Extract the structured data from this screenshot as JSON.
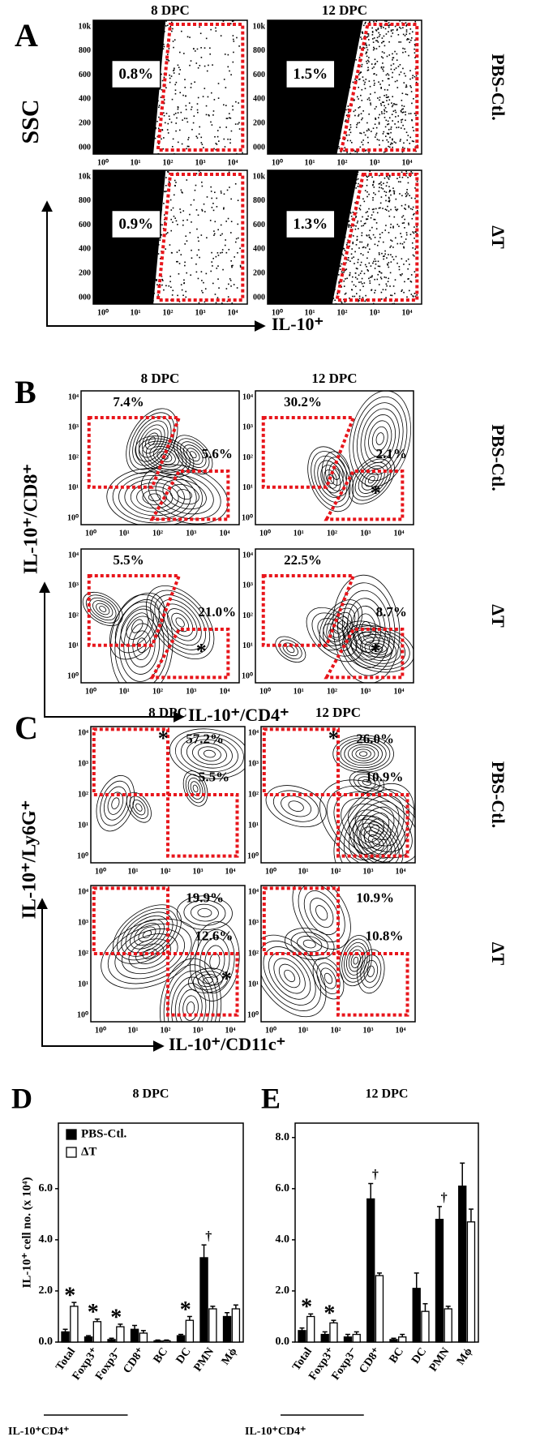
{
  "panels": [
    {
      "letter": "A",
      "columns": [
        "8 DPC",
        "12 DPC"
      ],
      "rows": [
        "PBS-Ctl.",
        "ΔT"
      ],
      "y_label": "SSC",
      "x_label": "IL-10⁺",
      "yticks": [
        "10k",
        "800",
        "600",
        "400",
        "200",
        "000"
      ],
      "xticks": [
        "10⁰",
        "10¹",
        "10²",
        "10³",
        "10⁴"
      ],
      "plots": [
        {
          "gates": [
            {
              "label": "0.8%"
            }
          ]
        },
        {
          "gates": [
            {
              "label": "1.5%"
            }
          ]
        },
        {
          "gates": [
            {
              "label": "0.9%"
            }
          ]
        },
        {
          "gates": [
            {
              "label": "1.3%"
            }
          ]
        }
      ]
    },
    {
      "letter": "B",
      "columns": [
        "8 DPC",
        "12 DPC"
      ],
      "rows": [
        "PBS-Ctl.",
        "ΔT"
      ],
      "y_label": "IL-10⁺/CD8⁺",
      "x_label": "IL-10⁺/CD4⁺",
      "yticks": [
        "10⁴",
        "10³",
        "10²",
        "10¹",
        "10⁰"
      ],
      "xticks": [
        "10⁰",
        "10¹",
        "10²",
        "10³",
        "10⁴"
      ],
      "plots": [
        {
          "gates": [
            {
              "label": "7.4%"
            },
            {
              "label": "5.6%"
            }
          ]
        },
        {
          "gates": [
            {
              "label": "30.2%"
            },
            {
              "label": "2.1%",
              "mark": "*"
            }
          ]
        },
        {
          "gates": [
            {
              "label": "5.5%"
            },
            {
              "label": "21.0%",
              "mark": "*"
            }
          ]
        },
        {
          "gates": [
            {
              "label": "22.5%"
            },
            {
              "label": "8.7%",
              "mark": "*"
            }
          ]
        }
      ]
    },
    {
      "letter": "C",
      "columns": [
        "8 DPC",
        "12 DPC"
      ],
      "rows": [
        "PBS-Ctl.",
        "ΔT"
      ],
      "y_label": "IL-10⁺/Ly6G⁺",
      "x_label": "IL-10⁺/CD11c⁺",
      "yticks": [
        "10⁴",
        "10³",
        "10²",
        "10¹",
        "10⁰"
      ],
      "xticks": [
        "10⁰",
        "10¹",
        "10²",
        "10³",
        "10⁴"
      ],
      "plots": [
        {
          "gates": [
            {
              "label": "57.2%",
              "mark": "*"
            },
            {
              "label": "5.5%"
            }
          ]
        },
        {
          "gates": [
            {
              "label": "26.0%",
              "mark": "*"
            },
            {
              "label": "10.9%"
            }
          ]
        },
        {
          "gates": [
            {
              "label": "19.9%"
            },
            {
              "label": "12.6%",
              "mark": "*"
            }
          ]
        },
        {
          "gates": [
            {
              "label": "10.9%"
            },
            {
              "label": "10.8%"
            }
          ]
        }
      ]
    }
  ],
  "chart_data": [
    {
      "type": "bar",
      "letter": "D",
      "title": "8 DPC",
      "y_label": "IL-10⁺ cell no. (x 10⁴)",
      "categories": [
        "Total",
        "Foxp3⁺",
        "Foxp3⁻",
        "CD8⁺",
        "BC",
        "DC",
        "PMN",
        "Mϕ"
      ],
      "series": [
        {
          "name": "PBS-Ctl.",
          "color": "#000000",
          "values": [
            0.4,
            0.2,
            0.1,
            0.5,
            0.05,
            0.25,
            3.3,
            1.0
          ],
          "errors": [
            0.1,
            0.05,
            0.05,
            0.15,
            0.03,
            0.05,
            0.5,
            0.15
          ]
        },
        {
          "name": "ΔT",
          "color": "#ffffff",
          "values": [
            1.4,
            0.8,
            0.6,
            0.35,
            0.05,
            0.85,
            1.3,
            1.3
          ],
          "errors": [
            0.15,
            0.1,
            0.1,
            0.1,
            0.03,
            0.15,
            0.1,
            0.15
          ]
        }
      ],
      "ylim": [
        0,
        8.5
      ],
      "yticks": [
        {
          "value": 0,
          "label": "0.0"
        },
        {
          "value": 2,
          "label": "2.0"
        },
        {
          "value": 4,
          "label": "4.0"
        },
        {
          "value": 6,
          "label": "6.0"
        }
      ],
      "legend": "upper left",
      "annotations": [
        {
          "text": "*",
          "category": "Total"
        },
        {
          "text": "*",
          "category": "Foxp3⁺"
        },
        {
          "text": "*",
          "category": "Foxp3⁻"
        },
        {
          "text": "*",
          "category": "DC"
        },
        {
          "text": "†",
          "category": "PMN"
        }
      ],
      "group_label": "IL-10⁺CD4⁺"
    },
    {
      "type": "bar",
      "letter": "E",
      "title": "12 DPC",
      "categories": [
        "Total",
        "Foxp3⁺",
        "Foxp3⁻",
        "CD8⁺",
        "BC",
        "DC",
        "PMN",
        "Mϕ"
      ],
      "series": [
        {
          "color": "#000000",
          "values": [
            0.45,
            0.3,
            0.2,
            5.6,
            0.1,
            2.1,
            4.8,
            6.1
          ],
          "errors": [
            0.1,
            0.1,
            0.1,
            0.6,
            0.05,
            0.6,
            0.5,
            0.9
          ]
        },
        {
          "color": "#ffffff",
          "values": [
            1.0,
            0.75,
            0.3,
            2.6,
            0.2,
            1.2,
            1.3,
            4.7
          ],
          "errors": [
            0.1,
            0.1,
            0.1,
            0.1,
            0.1,
            0.3,
            0.1,
            0.5
          ]
        }
      ],
      "ylim": [
        0,
        8.5
      ],
      "yticks": [
        {
          "value": 0,
          "label": "0.0"
        },
        {
          "value": 2,
          "label": "2.0"
        },
        {
          "value": 4,
          "label": "4.0"
        },
        {
          "value": 6,
          "label": "6.0"
        },
        {
          "value": 8,
          "label": "8.0"
        }
      ],
      "annotations": [
        {
          "text": "*",
          "category": "Total"
        },
        {
          "text": "*",
          "category": "Foxp3⁺"
        },
        {
          "text": "†",
          "category": "CD8⁺"
        },
        {
          "text": "†",
          "category": "PMN"
        }
      ],
      "group_label": "IL-10⁺CD4⁺"
    }
  ]
}
